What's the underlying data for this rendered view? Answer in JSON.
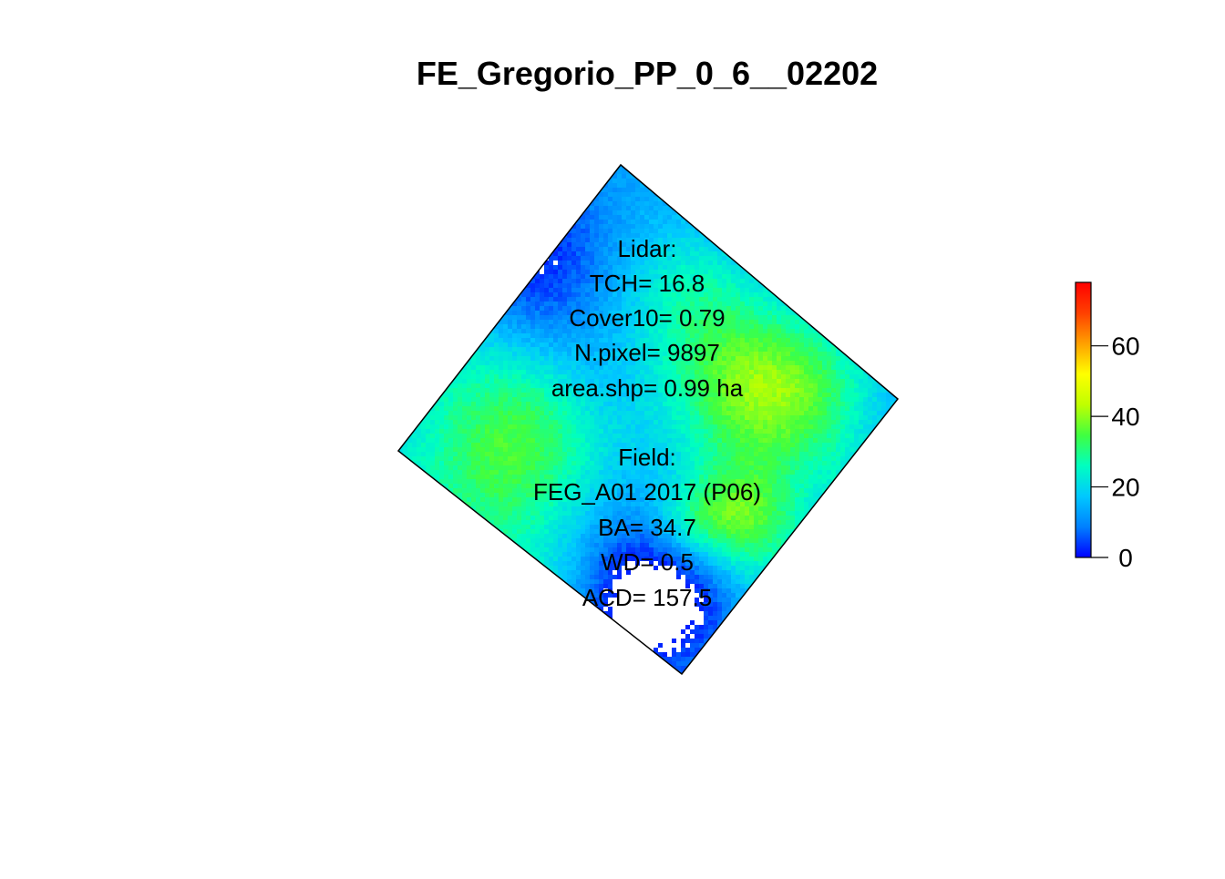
{
  "chart_data": {
    "type": "heatmap",
    "title": "FE_Gregorio_PP_0_6__02202",
    "annotations": [
      "Lidar:",
      "TCH= 16.8",
      "Cover10= 0.79",
      "N.pixel= 9897",
      "area.shp= 0.99 ha",
      "",
      "Field:",
      "FEG_A01 2017 (P06)",
      "BA= 34.7",
      "WD= 0.5",
      "ACD= 157.5"
    ],
    "colorbar": {
      "range": [
        0,
        78
      ],
      "ticks": [
        0,
        20,
        40,
        60
      ],
      "tick_labels": [
        "0",
        "20",
        "40",
        "60"
      ],
      "palette": [
        "#0000ff",
        "#0080ff",
        "#00c8ff",
        "#00ffc0",
        "#40ff40",
        "#c0ff00",
        "#ffff00",
        "#ffa000",
        "#ff4000",
        "#ff0000"
      ]
    },
    "raster_summary": {
      "mean_canopy_height": 16.8,
      "min": 0,
      "max": 78
    }
  }
}
